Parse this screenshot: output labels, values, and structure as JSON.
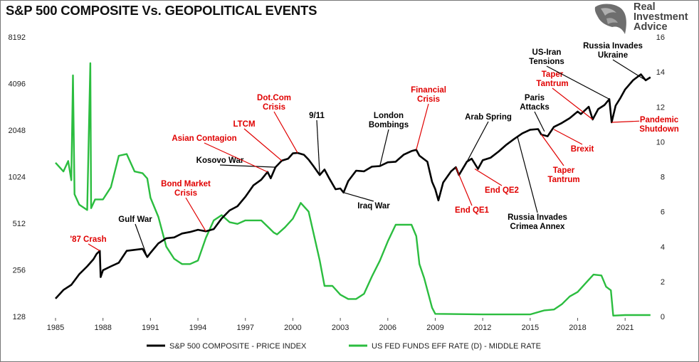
{
  "branding": {
    "logo_lines": [
      "Real",
      "Investment",
      "Advice"
    ],
    "logo_icon": "bull-head-icon"
  },
  "chart_data": {
    "type": "line",
    "title": "S&P 500 COMPOSITE Vs. GEOPOLITICAL EVENTS",
    "x_ticks": [
      "1985",
      "1988",
      "1991",
      "1994",
      "1997",
      "2000",
      "2003",
      "2006",
      "2009",
      "2012",
      "2015",
      "2018",
      "2021"
    ],
    "xlim": [
      1985,
      2022.7
    ],
    "y_left": {
      "scale": "log2",
      "lim": [
        128,
        8192
      ],
      "ticks": [
        "128",
        "256",
        "512",
        "1024",
        "2048",
        "4096",
        "8192"
      ]
    },
    "y_right": {
      "lim": [
        0,
        16
      ],
      "ticks": [
        "0",
        "2",
        "4",
        "6",
        "8",
        "10",
        "12",
        "14",
        "16"
      ]
    },
    "legend_placement": "bottom",
    "grid": false,
    "series": [
      {
        "name": "S&P 500 COMPOSITE - PRICE INDEX",
        "axis": "left",
        "color": "#000000",
        "points": [
          [
            1985.0,
            167
          ],
          [
            1985.5,
            190
          ],
          [
            1986.0,
            205
          ],
          [
            1986.5,
            240
          ],
          [
            1987.0,
            270
          ],
          [
            1987.4,
            300
          ],
          [
            1987.6,
            325
          ],
          [
            1987.8,
            340
          ],
          [
            1987.85,
            230
          ],
          [
            1988.0,
            255
          ],
          [
            1988.5,
            270
          ],
          [
            1989.0,
            285
          ],
          [
            1989.5,
            340
          ],
          [
            1990.0,
            345
          ],
          [
            1990.5,
            350
          ],
          [
            1990.8,
            310
          ],
          [
            1991.0,
            330
          ],
          [
            1991.5,
            380
          ],
          [
            1992.0,
            410
          ],
          [
            1992.5,
            415
          ],
          [
            1993.0,
            440
          ],
          [
            1993.5,
            450
          ],
          [
            1994.0,
            465
          ],
          [
            1994.5,
            455
          ],
          [
            1995.0,
            470
          ],
          [
            1995.5,
            550
          ],
          [
            1996.0,
            620
          ],
          [
            1996.5,
            660
          ],
          [
            1997.0,
            760
          ],
          [
            1997.5,
            900
          ],
          [
            1998.0,
            980
          ],
          [
            1998.4,
            1100
          ],
          [
            1998.6,
            1000
          ],
          [
            1998.9,
            1180
          ],
          [
            1999.3,
            1300
          ],
          [
            1999.7,
            1340
          ],
          [
            2000.0,
            1450
          ],
          [
            2000.3,
            1460
          ],
          [
            2000.7,
            1420
          ],
          [
            2001.0,
            1320
          ],
          [
            2001.3,
            1200
          ],
          [
            2001.7,
            1050
          ],
          [
            2002.0,
            1140
          ],
          [
            2002.3,
            1000
          ],
          [
            2002.7,
            850
          ],
          [
            2003.0,
            860
          ],
          [
            2003.2,
            810
          ],
          [
            2003.5,
            960
          ],
          [
            2004.0,
            1120
          ],
          [
            2004.5,
            1110
          ],
          [
            2005.0,
            1190
          ],
          [
            2005.5,
            1200
          ],
          [
            2006.0,
            1270
          ],
          [
            2006.5,
            1280
          ],
          [
            2007.0,
            1420
          ],
          [
            2007.5,
            1500
          ],
          [
            2007.8,
            1530
          ],
          [
            2008.0,
            1400
          ],
          [
            2008.5,
            1280
          ],
          [
            2008.8,
            950
          ],
          [
            2009.0,
            850
          ],
          [
            2009.2,
            720
          ],
          [
            2009.5,
            940
          ],
          [
            2010.0,
            1110
          ],
          [
            2010.3,
            1180
          ],
          [
            2010.5,
            1050
          ],
          [
            2011.0,
            1280
          ],
          [
            2011.3,
            1340
          ],
          [
            2011.7,
            1150
          ],
          [
            2012.0,
            1310
          ],
          [
            2012.5,
            1360
          ],
          [
            2013.0,
            1490
          ],
          [
            2013.5,
            1650
          ],
          [
            2014.0,
            1800
          ],
          [
            2014.5,
            1950
          ],
          [
            2015.0,
            2060
          ],
          [
            2015.5,
            2080
          ],
          [
            2015.7,
            1920
          ],
          [
            2016.1,
            1870
          ],
          [
            2016.5,
            2150
          ],
          [
            2017.0,
            2280
          ],
          [
            2017.5,
            2450
          ],
          [
            2018.0,
            2700
          ],
          [
            2018.2,
            2600
          ],
          [
            2018.7,
            2900
          ],
          [
            2018.95,
            2400
          ],
          [
            2019.3,
            2800
          ],
          [
            2019.7,
            2980
          ],
          [
            2020.0,
            3250
          ],
          [
            2020.15,
            2300
          ],
          [
            2020.4,
            2950
          ],
          [
            2020.7,
            3300
          ],
          [
            2021.0,
            3750
          ],
          [
            2021.5,
            4300
          ],
          [
            2022.0,
            4700
          ],
          [
            2022.3,
            4300
          ],
          [
            2022.6,
            4500
          ]
        ]
      },
      {
        "name": "US FED FUNDS EFF RATE (D) - MIDDLE RATE",
        "axis": "right",
        "color": "#2bbd3f",
        "points": [
          [
            1985.0,
            8.8
          ],
          [
            1985.5,
            8.3
          ],
          [
            1985.8,
            8.9
          ],
          [
            1986.0,
            7.8
          ],
          [
            1986.1,
            13.8
          ],
          [
            1986.2,
            7.0
          ],
          [
            1986.5,
            6.4
          ],
          [
            1987.0,
            6.1
          ],
          [
            1987.2,
            14.5
          ],
          [
            1987.25,
            6.2
          ],
          [
            1987.5,
            6.7
          ],
          [
            1988.0,
            6.7
          ],
          [
            1988.5,
            7.4
          ],
          [
            1989.0,
            9.2
          ],
          [
            1989.5,
            9.3
          ],
          [
            1990.0,
            8.3
          ],
          [
            1990.5,
            8.2
          ],
          [
            1990.8,
            7.9
          ],
          [
            1991.0,
            6.8
          ],
          [
            1991.5,
            5.7
          ],
          [
            1992.0,
            4.0
          ],
          [
            1992.5,
            3.3
          ],
          [
            1993.0,
            3.0
          ],
          [
            1993.5,
            3.0
          ],
          [
            1994.0,
            3.2
          ],
          [
            1994.5,
            4.5
          ],
          [
            1995.0,
            5.5
          ],
          [
            1995.5,
            5.8
          ],
          [
            1996.0,
            5.4
          ],
          [
            1996.5,
            5.3
          ],
          [
            1997.0,
            5.5
          ],
          [
            1997.5,
            5.5
          ],
          [
            1998.0,
            5.5
          ],
          [
            1998.8,
            4.8
          ],
          [
            1999.0,
            4.7
          ],
          [
            1999.5,
            5.1
          ],
          [
            2000.0,
            5.6
          ],
          [
            2000.5,
            6.5
          ],
          [
            2001.0,
            6.0
          ],
          [
            2001.3,
            4.8
          ],
          [
            2001.7,
            3.2
          ],
          [
            2002.0,
            1.75
          ],
          [
            2002.5,
            1.75
          ],
          [
            2003.0,
            1.25
          ],
          [
            2003.5,
            1.0
          ],
          [
            2004.0,
            1.0
          ],
          [
            2004.5,
            1.3
          ],
          [
            2005.0,
            2.3
          ],
          [
            2005.5,
            3.2
          ],
          [
            2006.0,
            4.3
          ],
          [
            2006.5,
            5.25
          ],
          [
            2007.0,
            5.25
          ],
          [
            2007.5,
            5.25
          ],
          [
            2007.8,
            4.6
          ],
          [
            2008.0,
            3.0
          ],
          [
            2008.3,
            2.2
          ],
          [
            2008.8,
            0.5
          ],
          [
            2009.0,
            0.15
          ],
          [
            2012.0,
            0.12
          ],
          [
            2015.0,
            0.12
          ],
          [
            2015.9,
            0.35
          ],
          [
            2016.5,
            0.4
          ],
          [
            2017.0,
            0.7
          ],
          [
            2017.5,
            1.15
          ],
          [
            2018.0,
            1.4
          ],
          [
            2018.5,
            1.9
          ],
          [
            2019.0,
            2.4
          ],
          [
            2019.5,
            2.35
          ],
          [
            2019.8,
            1.7
          ],
          [
            2020.1,
            1.5
          ],
          [
            2020.25,
            0.05
          ],
          [
            2021.0,
            0.08
          ],
          [
            2022.0,
            0.08
          ],
          [
            2022.6,
            0.08
          ]
        ]
      }
    ],
    "annotations": [
      {
        "text": [
          "'87 Crash"
        ],
        "color": "#e00000",
        "point": [
          1987.8,
          340
        ],
        "axis": "left"
      },
      {
        "text": [
          "Gulf War"
        ],
        "color": "#000000",
        "point": [
          1990.8,
          310
        ],
        "axis": "left"
      },
      {
        "text": [
          "Bond Market",
          "Crisis"
        ],
        "color": "#e00000",
        "point": [
          1994.5,
          455
        ],
        "axis": "left"
      },
      {
        "text": [
          "Kosovo War"
        ],
        "color": "#000000",
        "point": [
          1998.9,
          1180
        ],
        "axis": "left"
      },
      {
        "text": [
          "Asian Contagion"
        ],
        "color": "#e00000",
        "point": [
          1998.4,
          1100
        ],
        "axis": "left"
      },
      {
        "text": [
          "LTCM"
        ],
        "color": "#e00000",
        "point": [
          1999.3,
          1300
        ],
        "axis": "left"
      },
      {
        "text": [
          "Dot.Com",
          "Crisis"
        ],
        "color": "#e00000",
        "point": [
          2000.3,
          1460
        ],
        "axis": "left"
      },
      {
        "text": [
          "9/11"
        ],
        "color": "#000000",
        "point": [
          2001.7,
          1050
        ],
        "axis": "left"
      },
      {
        "text": [
          "Iraq War"
        ],
        "color": "#000000",
        "point": [
          2003.2,
          810
        ],
        "axis": "left"
      },
      {
        "text": [
          "London",
          "Bombings"
        ],
        "color": "#000000",
        "point": [
          2005.5,
          1200
        ],
        "axis": "left"
      },
      {
        "text": [
          "Financial",
          "Crisis"
        ],
        "color": "#e00000",
        "point": [
          2007.8,
          1530
        ],
        "axis": "left"
      },
      {
        "text": [
          "End QE1"
        ],
        "color": "#e00000",
        "point": [
          2010.3,
          1180
        ],
        "axis": "left"
      },
      {
        "text": [
          "Arab Spring"
        ],
        "color": "#000000",
        "point": [
          2011.0,
          1280
        ],
        "axis": "left"
      },
      {
        "text": [
          "End QE2"
        ],
        "color": "#e00000",
        "point": [
          2011.5,
          1150
        ],
        "axis": "left"
      },
      {
        "text": [
          "Russia Invades",
          "Crimea Annex"
        ],
        "color": "#000000",
        "point": [
          2014.2,
          1850
        ],
        "axis": "left"
      },
      {
        "text": [
          "Paris",
          "Attacks"
        ],
        "color": "#000000",
        "point": [
          2015.9,
          2010
        ],
        "axis": "left"
      },
      {
        "text": [
          "Brexit"
        ],
        "color": "#e00000",
        "point": [
          2016.5,
          2070
        ],
        "axis": "left"
      },
      {
        "text": [
          "Taper",
          "Tantrum"
        ],
        "color": "#e00000",
        "point": [
          2015.7,
          1920
        ],
        "axis": "left"
      },
      {
        "text": [
          "Taper",
          "Tantrum"
        ],
        "color": "#e00000",
        "point": [
          2018.95,
          2400
        ],
        "axis": "left"
      },
      {
        "text": [
          "US-Iran",
          "Tensions"
        ],
        "color": "#000000",
        "point": [
          2020.0,
          3250
        ],
        "axis": "left"
      },
      {
        "text": [
          "Pandemic",
          "Shutdown"
        ],
        "color": "#e00000",
        "point": [
          2020.15,
          2300
        ],
        "axis": "left"
      },
      {
        "text": [
          "Russia Invades",
          "Ukraine"
        ],
        "color": "#000000",
        "point": [
          2022.3,
          4300
        ],
        "axis": "left"
      }
    ]
  }
}
